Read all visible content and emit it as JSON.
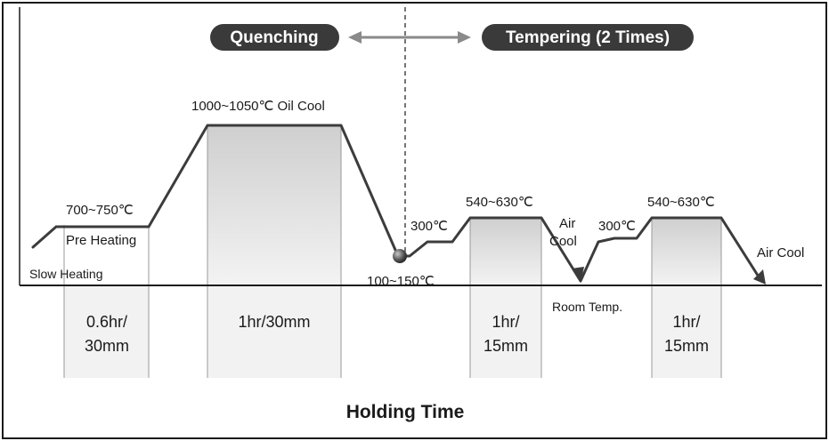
{
  "phases": {
    "quenching": "Quenching",
    "tempering": "Tempering (2 Times)"
  },
  "temps": {
    "preheat": "700~750℃",
    "austenitize": "1000~1050℃ Oil Cool",
    "quench_end": "100~150℃",
    "intermediate1": "300℃",
    "temper1": "540~630℃",
    "intermediate2": "300℃",
    "temper2": "540~630℃"
  },
  "stages": {
    "slow_heating": "Slow Heating",
    "pre_heating": "Pre Heating",
    "air_cool_1_line1": "Air",
    "air_cool_1_line2": "Cool",
    "room_temp": "Room Temp.",
    "air_cool_2": "Air Cool"
  },
  "holding": {
    "preheat_line1": "0.6hr/",
    "preheat_line2": "30mm",
    "austenitize": "1hr/30mm",
    "temper1_line1": "1hr/",
    "temper1_line2": "15mm",
    "temper2_line1": "1hr/",
    "temper2_line2": "15mm"
  },
  "axis_title": "Holding Time",
  "colors": {
    "ink": "#1a1a1a",
    "pill": "#3a3a3a",
    "arrow": "#8a8a8a",
    "hold_fill": "#dcdcdc"
  }
}
